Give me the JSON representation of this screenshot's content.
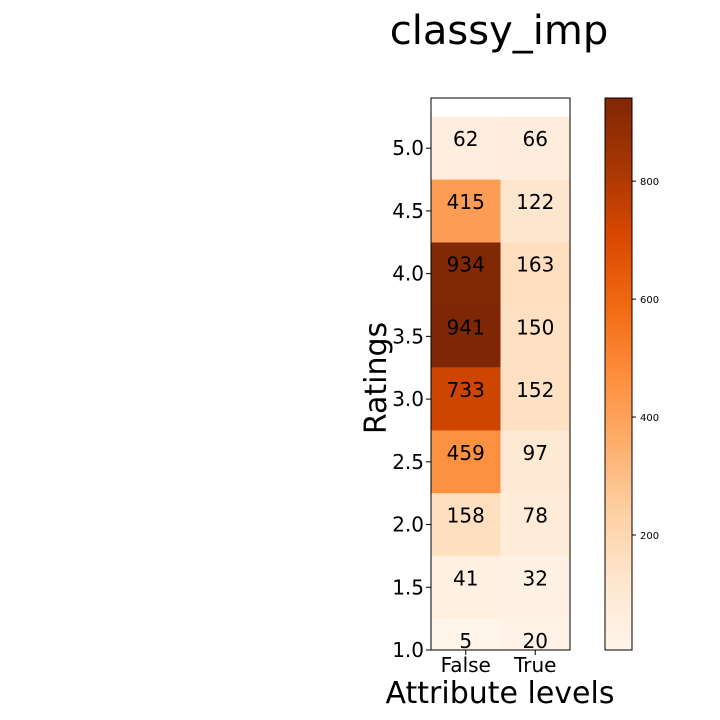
{
  "chart_data": {
    "type": "heatmap",
    "title": "classy_imp",
    "xlabel": "Attribute levels",
    "ylabel": "Ratings",
    "x_categories": [
      "False",
      "True"
    ],
    "y_ticks": [
      "1.0",
      "1.5",
      "2.0",
      "2.5",
      "3.0",
      "3.5",
      "4.0",
      "4.5",
      "5.0"
    ],
    "y_values": [
      1.0,
      1.5,
      2.0,
      2.5,
      3.0,
      3.5,
      4.0,
      4.5,
      5.0
    ],
    "values": [
      [
        5,
        20
      ],
      [
        41,
        32
      ],
      [
        158,
        78
      ],
      [
        459,
        97
      ],
      [
        733,
        152
      ],
      [
        941,
        150
      ],
      [
        934,
        163
      ],
      [
        415,
        122
      ],
      [
        62,
        66
      ]
    ],
    "colormap": "Oranges",
    "color_low": "#fff5eb",
    "color_high": "#7f2704",
    "colorbar": {
      "range": [
        5,
        941
      ],
      "ticks": [
        200,
        400,
        600,
        800
      ],
      "tick_labels": [
        "200",
        "400",
        "600",
        "800"
      ]
    }
  }
}
